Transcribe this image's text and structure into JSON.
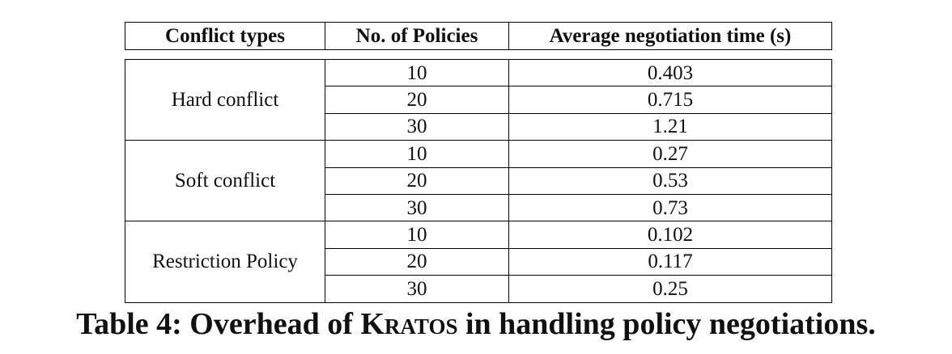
{
  "table": {
    "headers": [
      "Conflict types",
      "No. of Policies",
      "Average negotiation time (s)"
    ],
    "groups": [
      {
        "type": "Hard conflict",
        "rows": [
          {
            "policies": "10",
            "time": "0.403"
          },
          {
            "policies": "20",
            "time": "0.715"
          },
          {
            "policies": "30",
            "time": "1.21"
          }
        ]
      },
      {
        "type": "Soft conflict",
        "rows": [
          {
            "policies": "10",
            "time": "0.27"
          },
          {
            "policies": "20",
            "time": "0.53"
          },
          {
            "policies": "30",
            "time": "0.73"
          }
        ]
      },
      {
        "type": "Restriction Policy",
        "rows": [
          {
            "policies": "10",
            "time": "0.102"
          },
          {
            "policies": "20",
            "time": "0.117"
          },
          {
            "policies": "30",
            "time": "0.25"
          }
        ]
      }
    ]
  },
  "caption": {
    "prefix": "Table 4: Overhead of",
    "name": "Kratos",
    "suffix": "in handling policy negotiations."
  }
}
